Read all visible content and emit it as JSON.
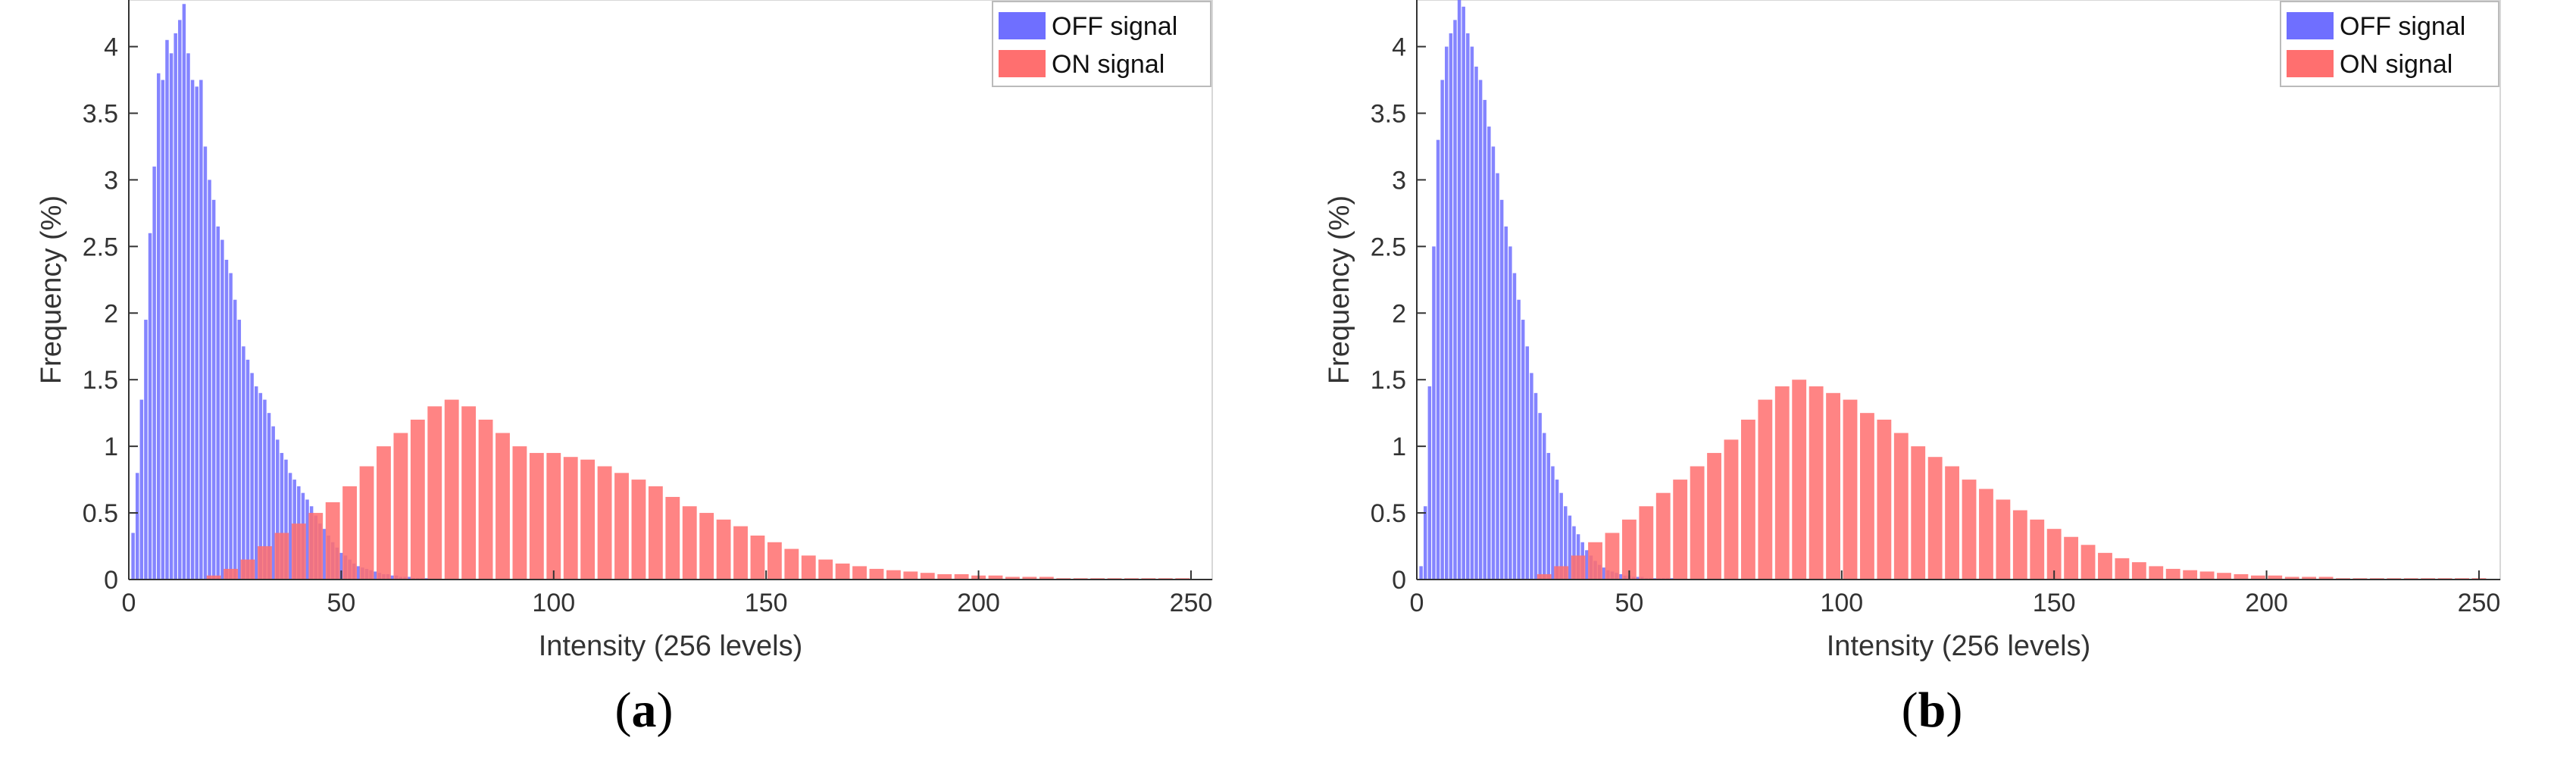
{
  "chart_data": [
    {
      "type": "bar",
      "panel_label": "a",
      "xlabel": "Intensity (256 levels)",
      "ylabel": "Frequency (%)",
      "xlim": [
        0,
        255
      ],
      "ylim": [
        0,
        4.35
      ],
      "xticks": [
        0,
        50,
        100,
        150,
        200,
        250
      ],
      "yticks": [
        0,
        0.5,
        1,
        1.5,
        2,
        2.5,
        3,
        3.5,
        4
      ],
      "legend_position": "top-right",
      "grid": false,
      "series": [
        {
          "name": "OFF signal",
          "color": "#6f6fff",
          "x": [
            1,
            2,
            3,
            4,
            5,
            6,
            7,
            8,
            9,
            10,
            11,
            12,
            13,
            14,
            15,
            16,
            17,
            18,
            19,
            20,
            21,
            22,
            23,
            24,
            25,
            26,
            27,
            28,
            29,
            30,
            31,
            32,
            33,
            34,
            35,
            36,
            37,
            38,
            39,
            40,
            41,
            42,
            43,
            44,
            45,
            46,
            47,
            48,
            49,
            50,
            51,
            52,
            53,
            54,
            55,
            56,
            57,
            58,
            59,
            60,
            61,
            62,
            63,
            64,
            65,
            66,
            67,
            68,
            69,
            70
          ],
          "values": [
            0.35,
            0.8,
            1.35,
            1.95,
            2.6,
            3.1,
            3.8,
            3.75,
            4.05,
            3.95,
            4.1,
            4.2,
            4.32,
            3.95,
            3.75,
            3.7,
            3.75,
            3.25,
            3.0,
            2.85,
            2.65,
            2.55,
            2.4,
            2.3,
            2.1,
            1.95,
            1.75,
            1.65,
            1.55,
            1.45,
            1.4,
            1.35,
            1.25,
            1.15,
            1.05,
            0.95,
            0.9,
            0.8,
            0.75,
            0.7,
            0.65,
            0.6,
            0.55,
            0.48,
            0.42,
            0.38,
            0.33,
            0.28,
            0.24,
            0.2,
            0.18,
            0.15,
            0.12,
            0.1,
            0.09,
            0.08,
            0.07,
            0.06,
            0.05,
            0.04,
            0.04,
            0.03,
            0.03,
            0.02,
            0.02,
            0.02,
            0.01,
            0.01,
            0.01,
            0.01
          ]
        },
        {
          "name": "ON signal",
          "color": "#ff6f6f",
          "x": [
            20,
            24,
            28,
            32,
            36,
            40,
            44,
            48,
            52,
            56,
            60,
            64,
            68,
            72,
            76,
            80,
            84,
            88,
            92,
            96,
            100,
            104,
            108,
            112,
            116,
            120,
            124,
            128,
            132,
            136,
            140,
            144,
            148,
            152,
            156,
            160,
            164,
            168,
            172,
            176,
            180,
            184,
            188,
            192,
            196,
            200,
            204,
            208,
            212,
            216,
            220,
            224,
            228,
            232,
            236,
            240,
            244,
            248
          ],
          "values": [
            0.03,
            0.08,
            0.15,
            0.25,
            0.35,
            0.42,
            0.5,
            0.58,
            0.7,
            0.85,
            1.0,
            1.1,
            1.2,
            1.3,
            1.35,
            1.3,
            1.2,
            1.1,
            1.0,
            0.95,
            0.95,
            0.92,
            0.9,
            0.85,
            0.8,
            0.75,
            0.7,
            0.62,
            0.55,
            0.5,
            0.45,
            0.4,
            0.33,
            0.28,
            0.23,
            0.18,
            0.15,
            0.12,
            0.1,
            0.08,
            0.07,
            0.06,
            0.05,
            0.04,
            0.04,
            0.03,
            0.03,
            0.02,
            0.02,
            0.02,
            0.01,
            0.01,
            0.01,
            0.01,
            0.01,
            0.01,
            0.01,
            0.01
          ]
        }
      ]
    },
    {
      "type": "bar",
      "panel_label": "b",
      "xlabel": "Intensity (256 levels)",
      "ylabel": "Frequency (%)",
      "xlim": [
        0,
        255
      ],
      "ylim": [
        0,
        4.35
      ],
      "xticks": [
        0,
        50,
        100,
        150,
        200,
        250
      ],
      "yticks": [
        0,
        0.5,
        1,
        1.5,
        2,
        2.5,
        3,
        3.5,
        4
      ],
      "legend_position": "top-right",
      "grid": false,
      "series": [
        {
          "name": "OFF signal",
          "color": "#6f6fff",
          "x": [
            1,
            2,
            3,
            4,
            5,
            6,
            7,
            8,
            9,
            10,
            11,
            12,
            13,
            14,
            15,
            16,
            17,
            18,
            19,
            20,
            21,
            22,
            23,
            24,
            25,
            26,
            27,
            28,
            29,
            30,
            31,
            32,
            33,
            34,
            35,
            36,
            37,
            38,
            39,
            40,
            41,
            42,
            43,
            44,
            45,
            46,
            47,
            48,
            49,
            50,
            51,
            52,
            53,
            54,
            55,
            56,
            57,
            58,
            59,
            60
          ],
          "values": [
            0.1,
            0.55,
            1.45,
            2.5,
            3.3,
            3.75,
            4.0,
            4.1,
            4.2,
            4.35,
            4.3,
            4.1,
            4.0,
            3.85,
            3.75,
            3.6,
            3.4,
            3.25,
            3.05,
            2.85,
            2.65,
            2.5,
            2.3,
            2.1,
            1.95,
            1.75,
            1.55,
            1.4,
            1.25,
            1.1,
            0.95,
            0.85,
            0.75,
            0.65,
            0.55,
            0.48,
            0.4,
            0.34,
            0.28,
            0.22,
            0.18,
            0.14,
            0.11,
            0.09,
            0.07,
            0.06,
            0.05,
            0.04,
            0.03,
            0.03,
            0.02,
            0.02,
            0.02,
            0.01,
            0.01,
            0.01,
            0.01,
            0.01,
            0.01,
            0.01
          ]
        },
        {
          "name": "ON signal",
          "color": "#ff6f6f",
          "x": [
            30,
            34,
            38,
            42,
            46,
            50,
            54,
            58,
            62,
            66,
            70,
            74,
            78,
            82,
            86,
            90,
            94,
            98,
            102,
            106,
            110,
            114,
            118,
            122,
            126,
            130,
            134,
            138,
            142,
            146,
            150,
            154,
            158,
            162,
            166,
            170,
            174,
            178,
            182,
            186,
            190,
            194,
            198,
            202,
            206,
            210,
            214,
            218,
            222,
            226,
            230,
            234,
            238,
            242,
            246,
            250
          ],
          "values": [
            0.04,
            0.1,
            0.18,
            0.28,
            0.35,
            0.45,
            0.55,
            0.65,
            0.75,
            0.85,
            0.95,
            1.05,
            1.2,
            1.35,
            1.45,
            1.5,
            1.45,
            1.4,
            1.35,
            1.25,
            1.2,
            1.1,
            1.0,
            0.92,
            0.85,
            0.75,
            0.68,
            0.6,
            0.52,
            0.45,
            0.38,
            0.32,
            0.26,
            0.2,
            0.16,
            0.13,
            0.1,
            0.08,
            0.07,
            0.06,
            0.05,
            0.04,
            0.03,
            0.03,
            0.02,
            0.02,
            0.02,
            0.01,
            0.01,
            0.01,
            0.01,
            0.01,
            0.01,
            0.01,
            0.01,
            0.01
          ]
        }
      ]
    }
  ]
}
